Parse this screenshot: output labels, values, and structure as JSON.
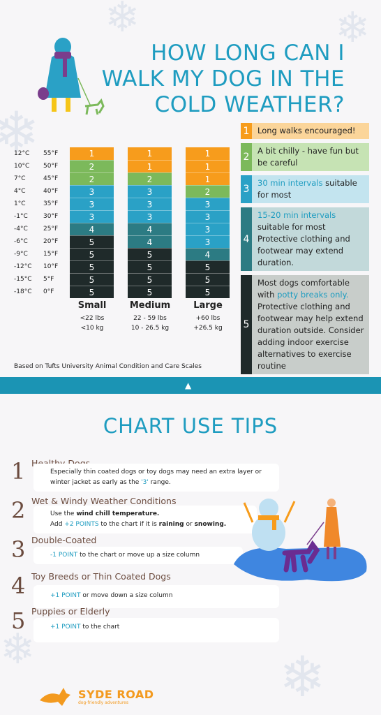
{
  "title_lines": [
    "HOW LONG CAN I",
    "WALK MY DOG IN THE",
    "COLD WEATHER?"
  ],
  "colors": {
    "1": "#f79c1c",
    "2": "#7cb95b",
    "3": "#2aa1c6",
    "4": "#2c7b83",
    "5": "#1f2a2a",
    "accent": "#1e9cc0",
    "band": "#1b94b4",
    "tip_text": "#6b4b3e"
  },
  "temps_c": [
    "12°C",
    "10°C",
    "7°C",
    "4°C",
    "1°C",
    "-1°C",
    "-4°C",
    "-6°C",
    "-9°C",
    "-12°C",
    "-15°C",
    "-18°C"
  ],
  "temps_f": [
    "55°F",
    "50°F",
    "45°F",
    "40°F",
    "35°F",
    "30°F",
    "25°F",
    "20°F",
    "15°F",
    "10°F",
    "5°F",
    "0°F"
  ],
  "chart": {
    "columns": [
      {
        "name": "Small",
        "weight": "<22 lbs",
        "kg": "<10 kg",
        "values": [
          "1",
          "2",
          "2",
          "3",
          "3",
          "3",
          "4",
          "5",
          "5",
          "5",
          "5",
          "5"
        ]
      },
      {
        "name": "Medium",
        "weight": "22 - 59 lbs",
        "kg": "10 - 26.5 kg",
        "values": [
          "1",
          "1",
          "2",
          "3",
          "3",
          "3",
          "4",
          "4",
          "5",
          "5",
          "5",
          "5"
        ]
      },
      {
        "name": "Large",
        "weight": "+60 lbs",
        "kg": "+26.5 kg",
        "values": [
          "1",
          "1",
          "1",
          "2",
          "3",
          "3",
          "3",
          "3",
          "4",
          "5",
          "5",
          "5"
        ]
      }
    ]
  },
  "legend": [
    {
      "num": "1",
      "text": "Long walks encouraged!"
    },
    {
      "num": "2",
      "text": "A bit chilly - have fun but be careful"
    },
    {
      "num": "3",
      "hl": "30 min intervals",
      "text": " suitable for most"
    },
    {
      "num": "4",
      "hl": "15-20 min intervals",
      "text": " suitable for most Protective clothing and footwear may extend duration."
    },
    {
      "num": "5",
      "pre": "Most dogs comfortable with ",
      "hl": "potty breaks only.",
      "text": " Protective clothing and footwear may help extend duration outside. Consider adding indoor exercise alternatives to exercise routine"
    }
  ],
  "source": "Based on Tufts University Animal Condition and Care Scales",
  "tips_title": "CHART USE TIPS",
  "tips": [
    {
      "num": "1",
      "heading": "Healthy Dogs",
      "line1": "Especially thin coated dogs or toy dogs may need an extra layer or",
      "line2": "winter jacket as early as the ",
      "line2_hl": "'3'",
      "line2_end": " range."
    },
    {
      "num": "2",
      "heading": "Wet & Windy Weather Conditions",
      "line1_pre": "Use the ",
      "line1_b": "wind chill temperature.",
      "line2_pre": "Add ",
      "line2_hl": "+2 POINTS",
      "line2_mid": " to the chart if it is ",
      "line2_b1": "raining",
      "line2_or": " or ",
      "line2_b2": "snowing."
    },
    {
      "num": "3",
      "heading": "Double-Coated",
      "hl": "-1 POINT",
      "text": " to the chart or move up a size column"
    },
    {
      "num": "4",
      "heading": "Toy Breeds or Thin Coated Dogs",
      "hl": "+1 POINT",
      "text": " or move down a size column"
    },
    {
      "num": "5",
      "heading": "Puppies or Elderly",
      "hl": "+1 POINT",
      "text": " to the chart"
    }
  ],
  "logo": {
    "name": "SYDE ROAD",
    "tagline": "dog-friendly adventures"
  }
}
